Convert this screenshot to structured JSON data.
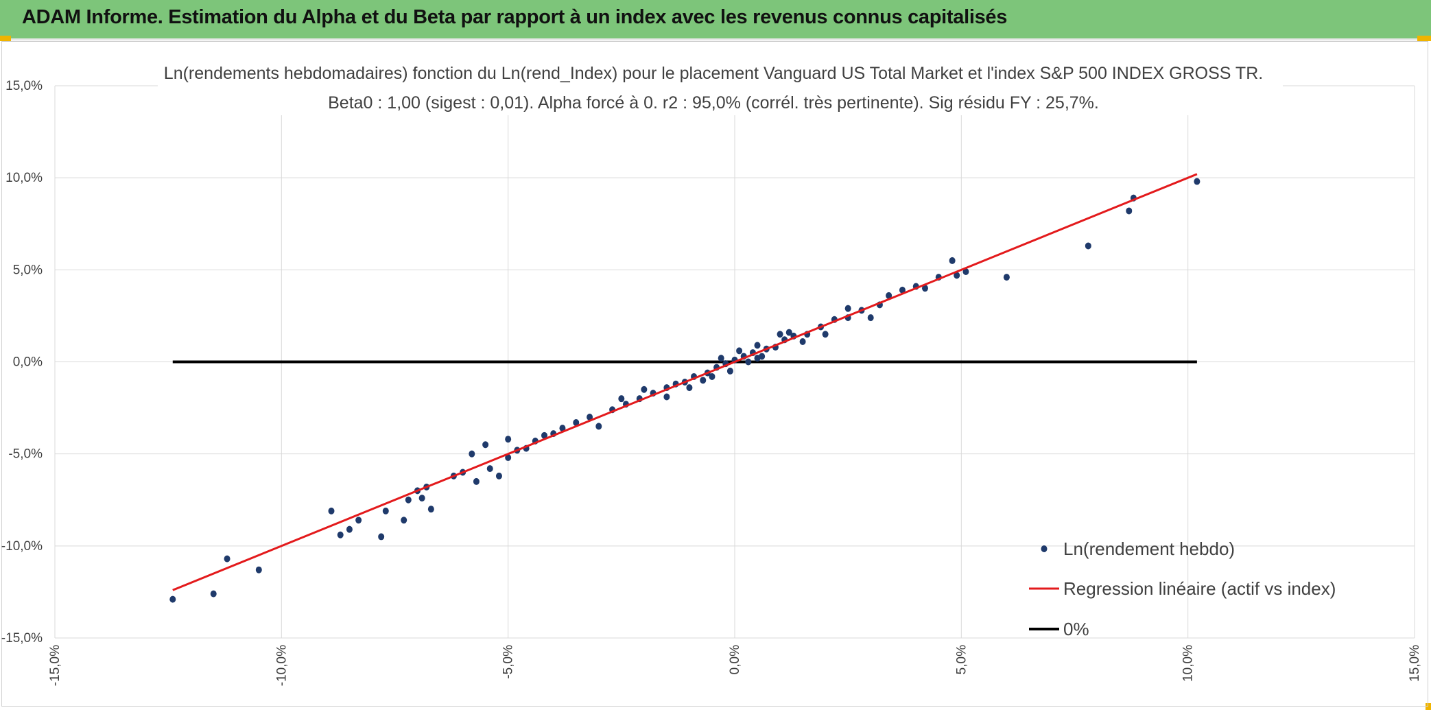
{
  "header": {
    "title": "ADAM Informe. Estimation du Alpha et du Beta par rapport à un index avec les revenus connus capitalisés",
    "background_color": "#7dc57a",
    "accent_color": "#f0b400"
  },
  "chart_data": {
    "type": "scatter",
    "title": "Ln(rendements hebdomadaires) fonction du Ln(rend_Index) pour le placement Vanguard US Total Market  et l'index S&P 500 INDEX GROSS TR.",
    "subtitle": "Beta0 : 1,00 (sigest : 0,01). Alpha forcé à 0. r2 : 95,0% (corrél. très pertinente). Sig résidu FY : 25,7%.",
    "xlabel": "",
    "ylabel": "",
    "xlim": [
      -15,
      15
    ],
    "ylim": [
      -15,
      15
    ],
    "x_ticks": [
      "-15,0%",
      "-10,0%",
      "-5,0%",
      "0,0%",
      "5,0%",
      "10,0%",
      "15,0%"
    ],
    "y_ticks": [
      "15,0%",
      "10,0%",
      "5,0%",
      "0,0%",
      "-5,0%",
      "-10,0%",
      "-15,0%"
    ],
    "grid": true,
    "legend_position": "bottom-right",
    "series": [
      {
        "name": "Ln(rendement hebdo)",
        "kind": "points",
        "color": "#1f3a6b",
        "x": [
          -12.4,
          -11.5,
          -11.2,
          -10.5,
          -8.9,
          -8.7,
          -8.5,
          -8.3,
          -7.8,
          -7.7,
          -7.3,
          -7.2,
          -7.0,
          -6.9,
          -6.8,
          -6.7,
          -6.2,
          -6.0,
          -5.8,
          -5.7,
          -5.5,
          -5.4,
          -5.2,
          -5.0,
          -5.0,
          -4.8,
          -4.6,
          -4.4,
          -4.2,
          -4.0,
          -3.8,
          -3.5,
          -3.2,
          -2.7,
          -2.4,
          -2.1,
          -1.8,
          -1.5,
          -1.3,
          -1.1,
          -0.9,
          -0.6,
          -0.4,
          -0.2,
          0.0,
          0.2,
          0.4,
          0.7,
          0.9,
          1.1,
          1.3,
          1.6,
          1.9,
          2.2,
          2.5,
          2.8,
          3.2,
          3.4,
          3.7,
          4.0,
          4.2,
          4.5,
          4.8,
          4.9,
          5.1,
          6.0,
          7.8,
          8.7,
          8.8,
          10.2,
          -2.0,
          -1.0,
          0.5,
          1.0,
          2.0,
          -3.0,
          3.0,
          -0.5,
          0.5,
          1.5,
          -1.5,
          2.5,
          -2.5,
          0.1,
          -0.1,
          0.3,
          -0.3,
          0.6,
          -0.7,
          1.2
        ],
        "y": [
          -12.9,
          -12.6,
          -10.7,
          -11.3,
          -8.1,
          -9.4,
          -9.1,
          -8.6,
          -9.5,
          -8.1,
          -8.6,
          -7.5,
          -7.0,
          -7.4,
          -6.8,
          -8.0,
          -6.2,
          -6.0,
          -5.0,
          -6.5,
          -4.5,
          -5.8,
          -6.2,
          -5.2,
          -4.2,
          -4.8,
          -4.7,
          -4.3,
          -4.0,
          -3.9,
          -3.6,
          -3.3,
          -3.0,
          -2.6,
          -2.3,
          -2.0,
          -1.7,
          -1.4,
          -1.2,
          -1.1,
          -0.8,
          -0.6,
          -0.3,
          -0.1,
          0.1,
          0.3,
          0.5,
          0.7,
          0.8,
          1.2,
          1.4,
          1.5,
          1.9,
          2.3,
          2.4,
          2.8,
          3.1,
          3.6,
          3.9,
          4.1,
          4.0,
          4.6,
          5.5,
          4.7,
          4.9,
          4.6,
          6.3,
          8.2,
          8.9,
          9.8,
          -1.5,
          -1.4,
          0.2,
          1.5,
          1.5,
          -3.5,
          2.4,
          -0.8,
          0.9,
          1.1,
          -1.9,
          2.9,
          -2.0,
          0.6,
          -0.5,
          0.0,
          0.2,
          0.3,
          -1.0,
          1.6
        ]
      },
      {
        "name": "Regression linéaire (actif vs index)",
        "kind": "line",
        "color": "#e31a1c",
        "x": [
          -12.4,
          10.2
        ],
        "y": [
          -12.4,
          10.2
        ]
      },
      {
        "name": "0%",
        "kind": "line",
        "color": "#000000",
        "x": [
          -12.4,
          10.2
        ],
        "y": [
          0,
          0
        ]
      }
    ]
  }
}
